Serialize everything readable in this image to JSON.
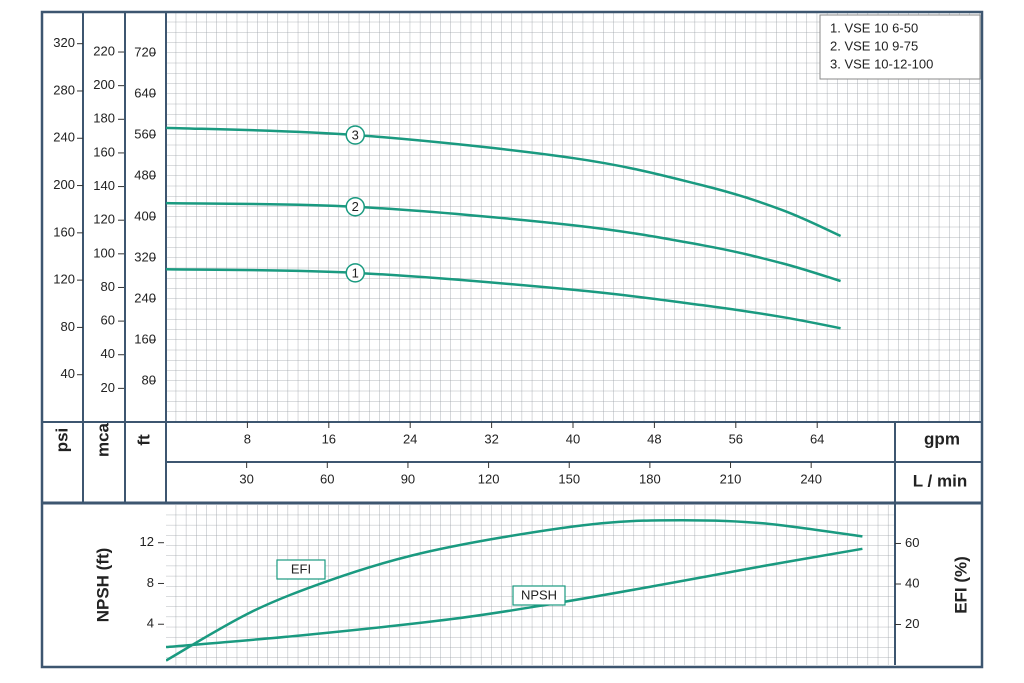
{
  "chart_data": [
    {
      "type": "line",
      "legend": "upper right",
      "x_label": "gpm",
      "xlim": [
        0,
        80
      ],
      "xticks": [
        8,
        16,
        24,
        32,
        40,
        48,
        56,
        64
      ],
      "x2_label": "L / min",
      "x2lim": [
        0,
        302.8
      ],
      "x2ticks": [
        30,
        60,
        90,
        120,
        150,
        180,
        210,
        240
      ],
      "y_label": "ft",
      "ylim": [
        0,
        800
      ],
      "yticks": [
        80,
        160,
        240,
        320,
        400,
        480,
        560,
        640,
        720
      ],
      "y2_label": "mca",
      "y2lim": [
        0,
        243.8
      ],
      "y2ticks": [
        20,
        40,
        60,
        80,
        100,
        120,
        140,
        160,
        180,
        200,
        220
      ],
      "y3_label": "psi",
      "y3lim": [
        0,
        346.8
      ],
      "y3ticks": [
        40,
        80,
        120,
        160,
        200,
        240,
        280,
        320
      ],
      "series": [
        {
          "name": "1. VSE 10 6-50",
          "marker_label": "1",
          "color": "#1a9a80",
          "x": [
            0,
            18.6,
            40,
            52.7,
            60.5,
            66.3
          ],
          "values": [
            298,
            291,
            258,
            228,
            205,
            183
          ]
        },
        {
          "name": "2. VSE 10 9-75",
          "marker_label": "2",
          "color": "#1a9a80",
          "x": [
            0,
            18.6,
            40,
            52.7,
            60.5,
            66.3
          ],
          "values": [
            427,
            420,
            384,
            345,
            310,
            275
          ]
        },
        {
          "name": "3. VSE 10-12-100",
          "marker_label": "3",
          "color": "#1a9a80",
          "x": [
            0,
            18.6,
            40,
            52.7,
            60.5,
            66.3
          ],
          "values": [
            574,
            560,
            515,
            462,
            414,
            363
          ]
        }
      ]
    },
    {
      "type": "line",
      "xlim": [
        0,
        71.6
      ],
      "y_label": "NPSH (ft)",
      "ylim": [
        0,
        15.7
      ],
      "yticks": [
        4,
        8,
        12
      ],
      "y2_label": "EFI (%)",
      "y2lim": [
        0,
        79
      ],
      "y2ticks": [
        20,
        40,
        60
      ],
      "series": [
        {
          "name": "EFI",
          "axis": "y2",
          "color": "#1a9a80",
          "x": [
            0,
            8.3,
            16.2,
            24.1,
            33,
            42.8,
            50.7,
            58.6,
            68.4
          ],
          "values": [
            2.2,
            26,
            42,
            54,
            63,
            70,
            71.5,
            70,
            63.5
          ]
        },
        {
          "name": "NPSH",
          "color": "#1a9a80",
          "x": [
            0,
            13.2,
            28,
            37.9,
            47.7,
            58.6,
            68.4
          ],
          "values": [
            1.76,
            2.9,
            4.5,
            6.0,
            7.7,
            9.7,
            11.4
          ]
        }
      ]
    }
  ]
}
